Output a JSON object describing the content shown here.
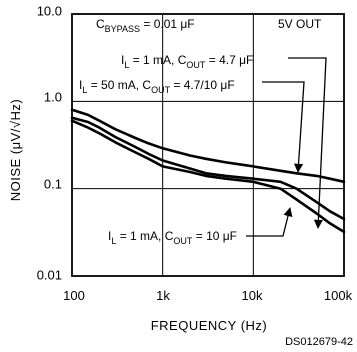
{
  "chart_data": {
    "type": "line",
    "xlabel": "FREQUENCY (Hz)",
    "ylabel": "NOISE (μV/√Hz)",
    "x_scale": "log",
    "y_scale": "log",
    "xlim": [
      100,
      100000
    ],
    "ylim": [
      0.01,
      10
    ],
    "grid": true,
    "x_ticks": [
      "100",
      "1k",
      "10k",
      "100k"
    ],
    "y_ticks": [
      "10.0",
      "1.0",
      "0.1",
      "0.01"
    ],
    "annotations": {
      "bypass": "C",
      "bypass_sub": "BYPASS",
      "bypass_val": " = 0.01 μF",
      "out": "5V OUT",
      "c1": {
        "il": "I",
        "il_sub": "L",
        "il_val": " = 1 mA, C",
        "cout_sub": "OUT",
        "cout_val": " = 4.7 μF"
      },
      "c2": {
        "il": "I",
        "il_sub": "L",
        "il_val": " = 50 mA, C",
        "cout_sub": "OUT",
        "cout_val": " = 4.7/10 μF"
      },
      "c3": {
        "il": "I",
        "il_sub": "L",
        "il_val": " = 1 mA, C",
        "cout_sub": "OUT",
        "cout_val": " = 10 μF"
      }
    },
    "footer": "DS012679-42",
    "series": [
      {
        "x": [
          100,
          150,
          200,
          300,
          500,
          700,
          1000,
          2000,
          3000,
          5000,
          7000,
          10000,
          20000,
          30000,
          50000,
          70000,
          100000
        ],
        "y": [
          0.8,
          0.7,
          0.6,
          0.48,
          0.38,
          0.33,
          0.29,
          0.24,
          0.22,
          0.2,
          0.19,
          0.18,
          0.16,
          0.15,
          0.14,
          0.13,
          0.12
        ]
      },
      {
        "x": [
          100,
          150,
          200,
          300,
          500,
          700,
          1000,
          2000,
          3000,
          5000,
          7000,
          10000,
          20000,
          30000,
          50000,
          70000,
          100000
        ],
        "y": [
          0.65,
          0.58,
          0.5,
          0.39,
          0.3,
          0.25,
          0.21,
          0.17,
          0.15,
          0.14,
          0.135,
          0.13,
          0.12,
          0.1,
          0.07,
          0.055,
          0.045
        ]
      },
      {
        "x": [
          100,
          150,
          200,
          300,
          500,
          700,
          1000,
          2000,
          3000,
          5000,
          7000,
          10000,
          20000,
          30000,
          50000,
          70000,
          100000
        ],
        "y": [
          0.6,
          0.5,
          0.43,
          0.34,
          0.26,
          0.22,
          0.18,
          0.155,
          0.14,
          0.13,
          0.125,
          0.12,
          0.1,
          0.075,
          0.052,
          0.04,
          0.032
        ]
      }
    ]
  }
}
